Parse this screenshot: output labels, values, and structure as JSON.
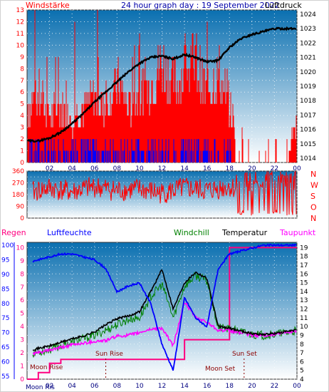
{
  "colors": {
    "plot_top": "#0a6fb0",
    "plot_bottom": "#ffffff",
    "wind_gust": "#ff0000",
    "wind_avg": "#0000ff",
    "pressure": "#000000",
    "direction": "#ff0000",
    "humidity": "#0000ff",
    "temperature": "#000000",
    "windchill": "#008000",
    "dewpoint": "#ff00ff",
    "rain": "#ff0080",
    "astro": "#8b0000"
  },
  "chart_data": [
    {
      "type": "line",
      "title": "24 hour graph day : 19 September 2022",
      "left_label": "Windstärke",
      "right_label": "Luftdruck",
      "x_ticks": [
        "02",
        "04",
        "06",
        "08",
        "10",
        "12",
        "14",
        "16",
        "18",
        "20",
        "22",
        "00"
      ],
      "y_left_ticks": [
        "0",
        "1",
        "2",
        "3",
        "4",
        "5",
        "6",
        "7",
        "8",
        "9",
        "10",
        "11",
        "12",
        "13"
      ],
      "y_left_range": [
        0,
        13
      ],
      "y_right_ticks": [
        "1014",
        "1015",
        "1016",
        "1017",
        "1018",
        "1019",
        "1020",
        "1021",
        "1022",
        "1023",
        "1024"
      ],
      "y_right_range": [
        1013.7,
        1024.3
      ],
      "series": [
        {
          "name": "Luftdruck",
          "x": [
            0,
            1,
            2,
            3,
            4,
            5,
            6,
            7,
            8,
            9,
            10,
            11,
            12,
            13,
            14,
            15,
            16,
            17,
            18,
            19,
            20,
            21,
            22,
            23,
            24
          ],
          "values": [
            1015.2,
            1015.2,
            1015.4,
            1015.8,
            1016.4,
            1017.1,
            1017.9,
            1018.6,
            1019.3,
            1020.0,
            1020.6,
            1021.0,
            1021.1,
            1020.9,
            1021.2,
            1021.0,
            1020.7,
            1020.8,
            1021.7,
            1022.3,
            1022.6,
            1022.8,
            1023.0,
            1023.0,
            1023.0
          ]
        },
        {
          "name": "Windstärke",
          "x": [
            0,
            1,
            2,
            3,
            4,
            5,
            6,
            7,
            8,
            9,
            10,
            11,
            12,
            13,
            14,
            15,
            16,
            17,
            18,
            19,
            20,
            21,
            22,
            23,
            24
          ],
          "values": [
            5,
            6,
            4,
            5,
            4,
            5,
            6,
            5,
            7,
            5,
            6,
            7,
            9,
            7,
            8,
            9,
            6,
            8,
            5,
            1,
            0,
            0,
            0,
            1,
            3
          ]
        }
      ]
    },
    {
      "type": "scatter",
      "y_ticks": [
        "0",
        "45",
        "90",
        "135",
        "180",
        "225",
        "270",
        "315",
        "360"
      ],
      "y_range": [
        0,
        360
      ],
      "right_labels": [
        "N",
        "W",
        "S",
        "O",
        "N"
      ],
      "series": [
        {
          "name": "Windrichtung",
          "x": [
            0,
            2,
            4,
            6,
            8,
            10,
            12,
            14,
            16,
            18,
            20,
            22,
            24
          ],
          "values": [
            190,
            230,
            200,
            240,
            210,
            220,
            190,
            230,
            210,
            240,
            180,
            220,
            200
          ]
        }
      ]
    },
    {
      "type": "line",
      "legend": [
        "Regen",
        "Luftfeuchte",
        "Windchill",
        "Temperatur",
        "Taupunkt"
      ],
      "x_ticks": [
        "02",
        "04",
        "06",
        "08",
        "10",
        "12",
        "14",
        "16",
        "18",
        "20",
        "22",
        "00"
      ],
      "y_left_humidity_ticks": [
        "55",
        "60",
        "65",
        "70",
        "75",
        "80",
        "85",
        "90",
        "95",
        "100"
      ],
      "y_left_rain_ticks": [
        "0",
        "1",
        "2",
        "3",
        "4",
        "5",
        "6",
        "7",
        "8",
        "9",
        "10"
      ],
      "y_right_ticks": [
        "4",
        "5",
        "6",
        "7",
        "8",
        "9",
        "10",
        "11",
        "12",
        "13",
        "14",
        "15",
        "16",
        "17",
        "18",
        "19"
      ],
      "humidity_range": [
        54,
        101
      ],
      "rain_range": [
        0,
        10.4
      ],
      "temp_range": [
        4,
        19.6
      ],
      "series": [
        {
          "name": "Luftfeuchte",
          "x": [
            0,
            1,
            2,
            3,
            4,
            5,
            6,
            7,
            8,
            9,
            10,
            11,
            12,
            13,
            14,
            15,
            16,
            17,
            18,
            19,
            20,
            21,
            22,
            23,
            24
          ],
          "values": [
            94,
            95,
            96,
            97,
            97,
            96,
            95,
            92,
            84,
            86,
            87,
            80,
            66,
            57,
            82,
            75,
            72,
            92,
            97,
            98,
            99,
            100,
            100,
            100,
            100
          ]
        },
        {
          "name": "Temperatur",
          "x": [
            0,
            1,
            2,
            3,
            4,
            5,
            6,
            7,
            8,
            9,
            10,
            11,
            12,
            13,
            14,
            15,
            16,
            17,
            18,
            19,
            20,
            21,
            22,
            23,
            24
          ],
          "values": [
            7.3,
            7.5,
            7.8,
            8.2,
            8.6,
            8.9,
            9.4,
            10.2,
            10.9,
            11.2,
            11.7,
            14.0,
            16.5,
            12.0,
            15.0,
            16.2,
            15.5,
            10.0,
            9.8,
            9.5,
            9.2,
            9.1,
            9.2,
            9.4,
            9.6
          ]
        },
        {
          "name": "Windchill",
          "x": [
            0,
            1,
            2,
            3,
            4,
            5,
            6,
            7,
            8,
            9,
            10,
            11,
            12,
            13,
            14,
            15,
            16,
            17,
            18,
            19,
            20,
            21,
            22,
            23,
            24
          ],
          "values": [
            6.8,
            7.1,
            7.4,
            7.8,
            8.2,
            8.6,
            9.0,
            9.6,
            10.2,
            10.8,
            11.0,
            13.4,
            14.8,
            11.0,
            14.6,
            15.8,
            15.2,
            9.9,
            9.7,
            9.4,
            9.1,
            9.0,
            9.1,
            9.3,
            9.5
          ]
        },
        {
          "name": "Taupunkt",
          "x": [
            0,
            1,
            2,
            3,
            4,
            5,
            6,
            7,
            8,
            9,
            10,
            11,
            12,
            13,
            14,
            15,
            16,
            17,
            18,
            19,
            20,
            21,
            22,
            23,
            24
          ],
          "values": [
            6.8,
            7.0,
            7.3,
            7.6,
            7.9,
            8.1,
            8.3,
            8.4,
            8.9,
            9.0,
            9.3,
            9.7,
            9.8,
            7.8,
            12.8,
            11.0,
            10.5,
            9.6,
            9.5,
            9.3,
            9.0,
            9.0,
            9.1,
            9.3,
            9.5
          ]
        },
        {
          "name": "Regen",
          "x": [
            0,
            1,
            2,
            3,
            4,
            5,
            6,
            7,
            8,
            9,
            10,
            11,
            12,
            13,
            14,
            15,
            16,
            17,
            18,
            19,
            20,
            21,
            22,
            23,
            24
          ],
          "values": [
            0,
            0.5,
            1.2,
            1.5,
            1.5,
            1.5,
            1.5,
            1.5,
            1.5,
            1.5,
            1.5,
            1.5,
            1.5,
            1.5,
            3.0,
            3.0,
            3.0,
            3.0,
            10.0,
            10.0,
            10.0,
            10.0,
            10.0,
            10.0,
            10.0
          ]
        }
      ],
      "annotations": [
        "Moon Rise",
        "Sun Rise",
        "Moon Set",
        "Sun Set",
        "Moon Ris"
      ]
    }
  ]
}
